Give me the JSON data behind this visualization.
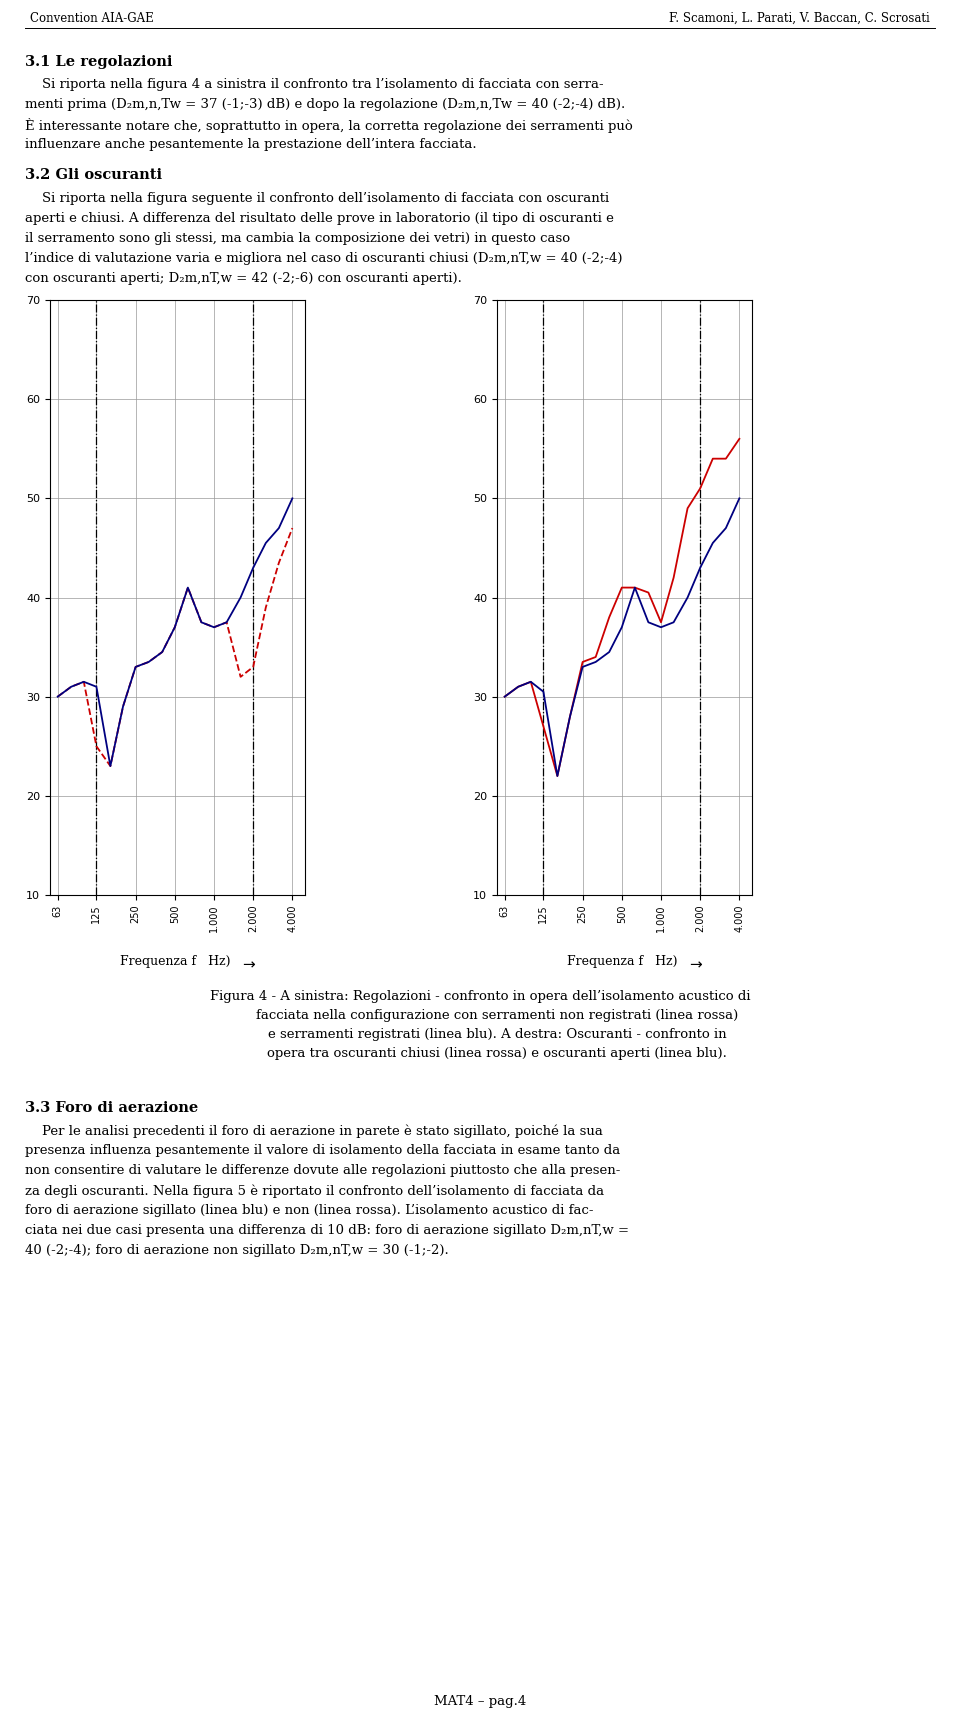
{
  "page_title_left": "Convention AIA-GAE",
  "page_title_right": "F. Scamoni, L. Parati, V. Baccan, C. Scrosati",
  "freq_values": [
    63,
    125,
    250,
    500,
    1000,
    2000,
    4000
  ],
  "ylim": [
    10,
    70
  ],
  "yticks": [
    10,
    20,
    30,
    40,
    50,
    60,
    70
  ],
  "xlabel": "Frequenza f   Hz)",
  "vline_freqs": [
    125,
    2000
  ],
  "chart1_blue_x": [
    63,
    80,
    100,
    125,
    160,
    200,
    250,
    315,
    400,
    500,
    630,
    800,
    1000,
    1250,
    1600,
    2000,
    2500,
    3150,
    4000
  ],
  "chart1_blue_y": [
    30,
    31,
    31.5,
    31,
    23,
    29,
    33,
    33.5,
    34.5,
    37,
    41,
    37.5,
    37,
    37.5,
    40,
    43,
    45.5,
    47,
    50
  ],
  "chart1_red_x": [
    63,
    80,
    100,
    125,
    160,
    200,
    250,
    315,
    400,
    500,
    630,
    800,
    1000,
    1250,
    1600,
    2000,
    2500,
    3150,
    4000
  ],
  "chart1_red_y": [
    30,
    31,
    31.5,
    25,
    23,
    29,
    33,
    33.5,
    34.5,
    37,
    41,
    37.5,
    37,
    37.5,
    32,
    33,
    39,
    43.5,
    47
  ],
  "chart2_blue_x": [
    63,
    80,
    100,
    125,
    160,
    200,
    250,
    315,
    400,
    500,
    630,
    800,
    1000,
    1250,
    1600,
    2000,
    2500,
    3150,
    4000
  ],
  "chart2_blue_y": [
    30,
    31,
    31.5,
    30.5,
    22,
    28,
    33,
    33.5,
    34.5,
    37,
    41,
    37.5,
    37,
    37.5,
    40,
    43,
    45.5,
    47,
    50
  ],
  "chart2_red_x": [
    63,
    80,
    100,
    125,
    160,
    200,
    250,
    315,
    400,
    500,
    630,
    800,
    1000,
    1250,
    1600,
    2000,
    2500,
    3150,
    4000
  ],
  "chart2_red_y": [
    30,
    31,
    31.5,
    27,
    22,
    28,
    33.5,
    34,
    38,
    41,
    41,
    40.5,
    37.5,
    42,
    49,
    51,
    54,
    54,
    56
  ],
  "blue_color": "#000080",
  "red_color": "#CC0000",
  "grid_color": "#aaaaaa",
  "vline_color": "#000000",
  "background": "#FFFFFF",
  "text_color": "#000000",
  "page_footer": "MAT4 – pag.4"
}
